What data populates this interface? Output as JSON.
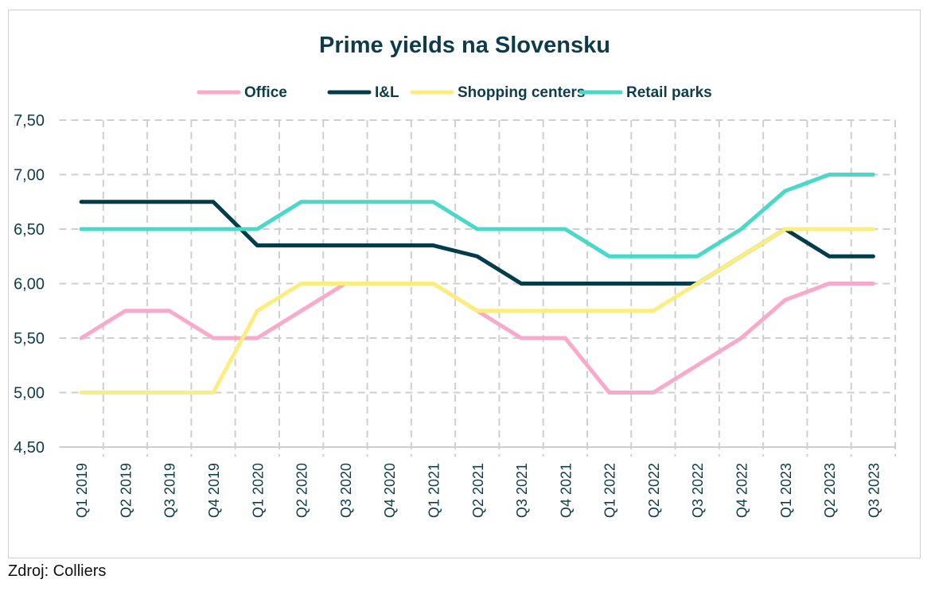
{
  "chart_data": {
    "type": "line",
    "title": "Prime yields na Slovensku",
    "xlabel": "",
    "ylabel": "",
    "ylim": [
      4.5,
      7.5
    ],
    "yticks": [
      "4,50",
      "5,00",
      "5,50",
      "6,00",
      "6,50",
      "7,00",
      "7,50"
    ],
    "ytick_values": [
      4.5,
      5.0,
      5.5,
      6.0,
      6.5,
      7.0,
      7.5
    ],
    "grid": true,
    "legend_position": "top",
    "categories": [
      "Q1 2019",
      "Q2 2019",
      "Q3 2019",
      "Q4 2019",
      "Q1 2020",
      "Q2 2020",
      "Q3 2020",
      "Q4 2020",
      "Q1 2021",
      "Q2 2021",
      "Q3 2021",
      "Q4 2021",
      "Q1 2022",
      "Q2 2022",
      "Q3 2022",
      "Q4 2022",
      "Q1 2023",
      "Q2 2023",
      "Q3 2023"
    ],
    "series": [
      {
        "name": "Office",
        "color": "#F9A9C9",
        "values": [
          5.5,
          5.75,
          5.75,
          5.5,
          5.5,
          5.75,
          6.0,
          6.0,
          6.0,
          5.75,
          5.5,
          5.5,
          5.0,
          5.0,
          5.25,
          5.5,
          5.85,
          6.0,
          6.0
        ]
      },
      {
        "name": "I&L",
        "color": "#003C4B",
        "values": [
          6.75,
          6.75,
          6.75,
          6.75,
          6.35,
          6.35,
          6.35,
          6.35,
          6.35,
          6.25,
          6.0,
          6.0,
          6.0,
          6.0,
          6.0,
          6.25,
          6.5,
          6.25,
          6.25
        ]
      },
      {
        "name": "Shopping centers",
        "color": "#FCEE7E",
        "values": [
          5.0,
          5.0,
          5.0,
          5.0,
          5.75,
          6.0,
          6.0,
          6.0,
          6.0,
          5.75,
          5.75,
          5.75,
          5.75,
          5.75,
          6.0,
          6.25,
          6.5,
          6.5,
          6.5
        ]
      },
      {
        "name": "Retail parks",
        "color": "#4AD9C9",
        "values": [
          6.5,
          6.5,
          6.5,
          6.5,
          6.5,
          6.75,
          6.75,
          6.75,
          6.75,
          6.5,
          6.5,
          6.5,
          6.25,
          6.25,
          6.25,
          6.5,
          6.85,
          7.0,
          7.0
        ]
      }
    ]
  },
  "source": "Zdroj: Colliers"
}
